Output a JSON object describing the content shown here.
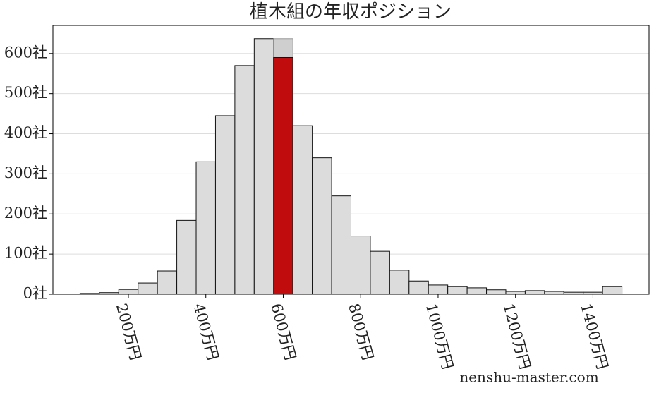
{
  "chart_data": {
    "type": "histogram",
    "title": "植木組の年収ポジション",
    "bins": [
      75,
      125,
      175,
      225,
      275,
      325,
      375,
      425,
      475,
      525,
      575,
      625,
      675,
      725,
      775,
      825,
      875,
      925,
      975,
      1025,
      1075,
      1125,
      1175,
      1225,
      1275,
      1325,
      1375,
      1425,
      1475
    ],
    "values": [
      2,
      4,
      12,
      28,
      58,
      184,
      330,
      445,
      570,
      637,
      590,
      420,
      340,
      245,
      145,
      107,
      60,
      33,
      23,
      19,
      16,
      11,
      7,
      9,
      7,
      5,
      5,
      19
    ],
    "color": "#dcdcdc",
    "highlight_index": 10,
    "highlight_color": "#c00c0c",
    "highlight_shadow_value": 637,
    "xlim": [
      5,
      1545
    ],
    "ylim": [
      0,
      670
    ],
    "xticks": [
      {
        "value": 200,
        "label": "200万円"
      },
      {
        "value": 400,
        "label": "400万円"
      },
      {
        "value": 600,
        "label": "600万円"
      },
      {
        "value": 800,
        "label": "800万円"
      },
      {
        "value": 1000,
        "label": "1000万円"
      },
      {
        "value": 1200,
        "label": "1200万円"
      },
      {
        "value": 1400,
        "label": "1400万円"
      }
    ],
    "yticks": [
      {
        "value": 0,
        "label": "0社"
      },
      {
        "value": 100,
        "label": "100社"
      },
      {
        "value": 200,
        "label": "200社"
      },
      {
        "value": 300,
        "label": "300社"
      },
      {
        "value": 400,
        "label": "400社"
      },
      {
        "value": 500,
        "label": "500社"
      },
      {
        "value": 600,
        "label": "600社"
      }
    ],
    "grid": true,
    "watermark": "nenshu-master.com"
  }
}
